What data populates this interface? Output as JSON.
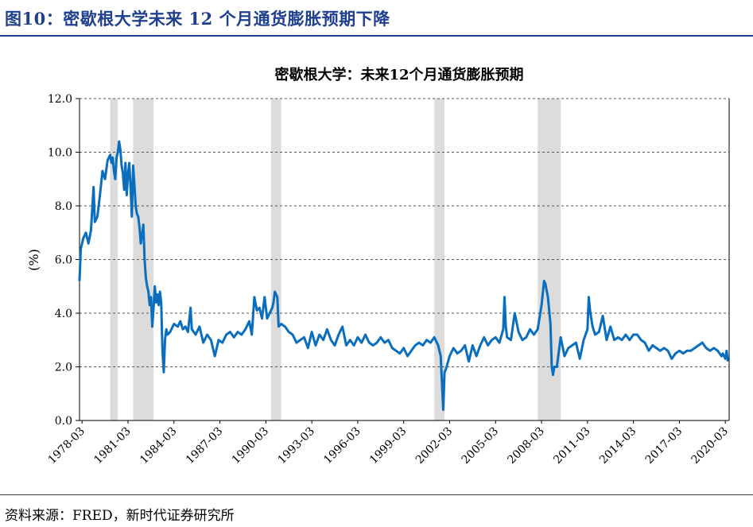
{
  "figure": {
    "label": "图10：",
    "title": "密歇根大学未来 12 个月通货膨胀预期下降",
    "source": "资料来源：FRED，新时代证券研究所"
  },
  "chart_data": {
    "type": "line",
    "title": "密歇根大学：未来12个月通货膨胀预期",
    "ylabel": "(%)",
    "xlabel": "",
    "ylim": [
      0,
      12
    ],
    "yticks": [
      "0.0",
      "2.0",
      "4.0",
      "6.0",
      "8.0",
      "10.0",
      "12.0"
    ],
    "xlim": [
      "1978-01",
      "2020-06"
    ],
    "xticks": [
      "1978-03",
      "1981-03",
      "1984-03",
      "1987-03",
      "1990-03",
      "1993-03",
      "1996-03",
      "1999-03",
      "2002-03",
      "2005-03",
      "2008-03",
      "2011-03",
      "2014-03",
      "2017-03",
      "2020-03"
    ],
    "grid": "horizontal-dashed",
    "line_color": "#0a6ebf",
    "recession_color": "#dcdcdc",
    "recessions": [
      [
        "1980-01",
        "1980-07"
      ],
      [
        "1981-07",
        "1982-11"
      ],
      [
        "1990-07",
        "1991-03"
      ],
      [
        "2001-03",
        "2001-11"
      ],
      [
        "2007-12",
        "2009-06"
      ]
    ],
    "series": [
      {
        "name": "",
        "points": [
          [
            "1978-01",
            5.2
          ],
          [
            "1978-02",
            6.4
          ],
          [
            "1978-04",
            6.8
          ],
          [
            "1978-06",
            7.0
          ],
          [
            "1978-08",
            6.6
          ],
          [
            "1978-10",
            7.1
          ],
          [
            "1978-12",
            8.7
          ],
          [
            "1979-01",
            7.4
          ],
          [
            "1979-03",
            7.6
          ],
          [
            "1979-05",
            8.4
          ],
          [
            "1979-07",
            9.3
          ],
          [
            "1979-09",
            9.0
          ],
          [
            "1979-11",
            9.7
          ],
          [
            "1980-01",
            9.9
          ],
          [
            "1980-02",
            9.6
          ],
          [
            "1980-03",
            9.8
          ],
          [
            "1980-04",
            9.3
          ],
          [
            "1980-05",
            9.0
          ],
          [
            "1980-06",
            9.8
          ],
          [
            "1980-07",
            10.0
          ],
          [
            "1980-08",
            10.4
          ],
          [
            "1980-09",
            10.1
          ],
          [
            "1980-10",
            9.5
          ],
          [
            "1980-11",
            9.2
          ],
          [
            "1980-12",
            8.6
          ],
          [
            "1981-01",
            9.6
          ],
          [
            "1981-02",
            8.4
          ],
          [
            "1981-03",
            9.2
          ],
          [
            "1981-04",
            9.6
          ],
          [
            "1981-05",
            8.7
          ],
          [
            "1981-06",
            7.6
          ],
          [
            "1981-07",
            9.5
          ],
          [
            "1981-08",
            8.8
          ],
          [
            "1981-09",
            8.0
          ],
          [
            "1981-10",
            7.7
          ],
          [
            "1981-11",
            7.6
          ],
          [
            "1981-12",
            7.2
          ],
          [
            "1982-01",
            6.6
          ],
          [
            "1982-02",
            6.9
          ],
          [
            "1982-03",
            7.3
          ],
          [
            "1982-04",
            6.0
          ],
          [
            "1982-05",
            5.3
          ],
          [
            "1982-06",
            5.0
          ],
          [
            "1982-07",
            4.8
          ],
          [
            "1982-08",
            4.3
          ],
          [
            "1982-09",
            4.6
          ],
          [
            "1982-10",
            3.5
          ],
          [
            "1982-11",
            4.2
          ],
          [
            "1982-12",
            5.0
          ],
          [
            "1983-01",
            4.4
          ],
          [
            "1983-02",
            4.7
          ],
          [
            "1983-03",
            4.3
          ],
          [
            "1983-04",
            4.8
          ],
          [
            "1983-05",
            4.4
          ],
          [
            "1983-06",
            2.6
          ],
          [
            "1983-07",
            1.8
          ],
          [
            "1983-08",
            3.0
          ],
          [
            "1983-09",
            3.4
          ],
          [
            "1983-10",
            3.2
          ],
          [
            "1983-12",
            3.3
          ],
          [
            "1984-03",
            3.6
          ],
          [
            "1984-06",
            3.5
          ],
          [
            "1984-08",
            3.7
          ],
          [
            "1984-10",
            3.4
          ],
          [
            "1984-12",
            3.5
          ],
          [
            "1985-02",
            3.3
          ],
          [
            "1985-04",
            4.2
          ],
          [
            "1985-05",
            3.4
          ],
          [
            "1985-08",
            3.2
          ],
          [
            "1985-11",
            3.5
          ],
          [
            "1986-02",
            2.9
          ],
          [
            "1986-05",
            3.2
          ],
          [
            "1986-08",
            3.0
          ],
          [
            "1986-11",
            2.4
          ],
          [
            "1987-02",
            3.0
          ],
          [
            "1987-05",
            2.9
          ],
          [
            "1987-08",
            3.2
          ],
          [
            "1987-11",
            3.3
          ],
          [
            "1988-02",
            3.1
          ],
          [
            "1988-05",
            3.3
          ],
          [
            "1988-08",
            3.2
          ],
          [
            "1988-11",
            3.4
          ],
          [
            "1989-02",
            3.7
          ],
          [
            "1989-04",
            3.2
          ],
          [
            "1989-06",
            4.6
          ],
          [
            "1989-08",
            4.1
          ],
          [
            "1989-10",
            4.2
          ],
          [
            "1989-12",
            3.8
          ],
          [
            "1990-02",
            4.6
          ],
          [
            "1990-04",
            3.8
          ],
          [
            "1990-06",
            4.0
          ],
          [
            "1990-08",
            4.2
          ],
          [
            "1990-09",
            4.4
          ],
          [
            "1990-10",
            4.8
          ],
          [
            "1990-11",
            4.7
          ],
          [
            "1990-12",
            4.6
          ],
          [
            "1991-01",
            3.5
          ],
          [
            "1991-03",
            3.6
          ],
          [
            "1991-06",
            3.5
          ],
          [
            "1991-09",
            3.3
          ],
          [
            "1991-12",
            3.2
          ],
          [
            "1992-03",
            2.9
          ],
          [
            "1992-06",
            3.0
          ],
          [
            "1992-09",
            3.1
          ],
          [
            "1992-12",
            2.7
          ],
          [
            "1993-03",
            3.3
          ],
          [
            "1993-06",
            2.8
          ],
          [
            "1993-09",
            3.2
          ],
          [
            "1993-12",
            3.0
          ],
          [
            "1994-03",
            3.4
          ],
          [
            "1994-06",
            3.0
          ],
          [
            "1994-09",
            2.8
          ],
          [
            "1994-12",
            3.2
          ],
          [
            "1995-03",
            3.5
          ],
          [
            "1995-06",
            2.8
          ],
          [
            "1995-09",
            3.0
          ],
          [
            "1995-12",
            2.8
          ],
          [
            "1996-03",
            3.1
          ],
          [
            "1996-06",
            2.9
          ],
          [
            "1996-09",
            3.2
          ],
          [
            "1996-12",
            2.9
          ],
          [
            "1997-03",
            2.8
          ],
          [
            "1997-06",
            2.9
          ],
          [
            "1997-09",
            3.1
          ],
          [
            "1997-12",
            2.9
          ],
          [
            "1998-03",
            3.0
          ],
          [
            "1998-06",
            2.7
          ],
          [
            "1998-09",
            2.6
          ],
          [
            "1998-12",
            2.5
          ],
          [
            "1999-03",
            2.7
          ],
          [
            "1999-06",
            2.4
          ],
          [
            "1999-09",
            2.6
          ],
          [
            "1999-12",
            2.8
          ],
          [
            "2000-03",
            2.9
          ],
          [
            "2000-06",
            2.8
          ],
          [
            "2000-09",
            3.0
          ],
          [
            "2000-12",
            2.9
          ],
          [
            "2001-03",
            3.1
          ],
          [
            "2001-06",
            2.8
          ],
          [
            "2001-08",
            2.4
          ],
          [
            "2001-09",
            1.4
          ],
          [
            "2001-10",
            0.4
          ],
          [
            "2001-11",
            1.8
          ],
          [
            "2001-12",
            1.9
          ],
          [
            "2002-03",
            2.4
          ],
          [
            "2002-06",
            2.7
          ],
          [
            "2002-09",
            2.5
          ],
          [
            "2002-12",
            2.6
          ],
          [
            "2003-03",
            2.8
          ],
          [
            "2003-06",
            2.2
          ],
          [
            "2003-09",
            2.8
          ],
          [
            "2003-12",
            2.4
          ],
          [
            "2004-03",
            2.8
          ],
          [
            "2004-06",
            3.1
          ],
          [
            "2004-09",
            2.8
          ],
          [
            "2004-12",
            3.0
          ],
          [
            "2005-03",
            3.1
          ],
          [
            "2005-06",
            2.9
          ],
          [
            "2005-09",
            3.4
          ],
          [
            "2005-10",
            4.6
          ],
          [
            "2005-11",
            3.5
          ],
          [
            "2005-12",
            3.1
          ],
          [
            "2006-03",
            3.0
          ],
          [
            "2006-06",
            4.0
          ],
          [
            "2006-09",
            3.3
          ],
          [
            "2006-12",
            3.0
          ],
          [
            "2007-03",
            3.1
          ],
          [
            "2007-06",
            3.4
          ],
          [
            "2007-09",
            3.2
          ],
          [
            "2007-12",
            3.4
          ],
          [
            "2008-03",
            4.3
          ],
          [
            "2008-05",
            5.2
          ],
          [
            "2008-06",
            5.1
          ],
          [
            "2008-08",
            4.6
          ],
          [
            "2008-10",
            3.6
          ],
          [
            "2008-11",
            2.0
          ],
          [
            "2008-12",
            1.7
          ],
          [
            "2009-01",
            2.0
          ],
          [
            "2009-03",
            2.0
          ],
          [
            "2009-06",
            3.1
          ],
          [
            "2009-09",
            2.4
          ],
          [
            "2009-12",
            2.7
          ],
          [
            "2010-03",
            2.8
          ],
          [
            "2010-06",
            2.9
          ],
          [
            "2010-09",
            2.3
          ],
          [
            "2010-12",
            3.0
          ],
          [
            "2011-03",
            3.4
          ],
          [
            "2011-04",
            4.6
          ],
          [
            "2011-05",
            4.1
          ],
          [
            "2011-07",
            3.5
          ],
          [
            "2011-09",
            3.2
          ],
          [
            "2011-12",
            3.3
          ],
          [
            "2012-03",
            3.9
          ],
          [
            "2012-06",
            3.0
          ],
          [
            "2012-09",
            3.5
          ],
          [
            "2012-12",
            3.0
          ],
          [
            "2013-03",
            3.1
          ],
          [
            "2013-06",
            3.0
          ],
          [
            "2013-09",
            3.2
          ],
          [
            "2013-12",
            3.0
          ],
          [
            "2014-03",
            3.2
          ],
          [
            "2014-06",
            3.2
          ],
          [
            "2014-09",
            3.0
          ],
          [
            "2014-12",
            2.9
          ],
          [
            "2015-03",
            2.6
          ],
          [
            "2015-06",
            2.8
          ],
          [
            "2015-09",
            2.7
          ],
          [
            "2015-12",
            2.6
          ],
          [
            "2016-03",
            2.7
          ],
          [
            "2016-06",
            2.6
          ],
          [
            "2016-09",
            2.3
          ],
          [
            "2016-12",
            2.5
          ],
          [
            "2017-03",
            2.6
          ],
          [
            "2017-06",
            2.5
          ],
          [
            "2017-09",
            2.6
          ],
          [
            "2017-12",
            2.6
          ],
          [
            "2018-03",
            2.7
          ],
          [
            "2018-06",
            2.8
          ],
          [
            "2018-09",
            2.9
          ],
          [
            "2018-12",
            2.7
          ],
          [
            "2019-03",
            2.6
          ],
          [
            "2019-06",
            2.7
          ],
          [
            "2019-09",
            2.6
          ],
          [
            "2019-12",
            2.4
          ],
          [
            "2020-01",
            2.5
          ],
          [
            "2020-02",
            2.4
          ],
          [
            "2020-03",
            2.3
          ],
          [
            "2020-04",
            2.6
          ],
          [
            "2020-05",
            2.2
          ]
        ]
      }
    ]
  }
}
